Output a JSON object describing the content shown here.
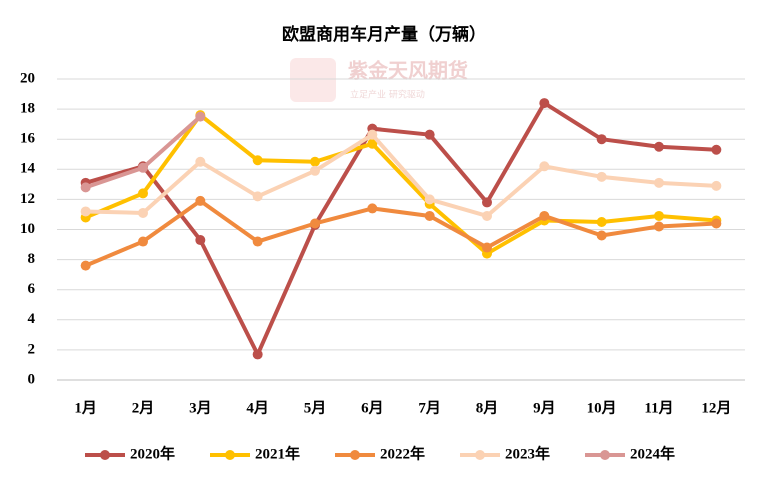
{
  "chart_data": {
    "type": "line",
    "title": "欧盟商用车月产量（万辆）",
    "watermark": "紫金天风期货",
    "watermark_sub": "立足产业 研究驱动",
    "categories": [
      "1月",
      "2月",
      "3月",
      "4月",
      "5月",
      "6月",
      "7月",
      "8月",
      "9月",
      "10月",
      "11月",
      "12月"
    ],
    "series": [
      {
        "name": "2020年",
        "color": "#bc4f4a",
        "values": [
          13.1,
          14.2,
          9.3,
          1.7,
          10.3,
          16.7,
          16.3,
          11.8,
          18.4,
          16.0,
          15.5,
          15.3
        ]
      },
      {
        "name": "2021年",
        "color": "#ffc000",
        "values": [
          10.8,
          12.4,
          17.6,
          14.6,
          14.5,
          15.7,
          11.7,
          8.4,
          10.6,
          10.5,
          10.9,
          10.6
        ]
      },
      {
        "name": "2022年",
        "color": "#f08a3e",
        "values": [
          7.6,
          9.2,
          11.9,
          9.2,
          10.4,
          11.4,
          10.9,
          8.8,
          10.9,
          9.6,
          10.2,
          10.4
        ]
      },
      {
        "name": "2023年",
        "color": "#fbd2b4",
        "values": [
          11.2,
          11.1,
          14.5,
          12.2,
          13.9,
          16.3,
          12.0,
          10.9,
          14.2,
          13.5,
          13.1,
          12.9
        ]
      },
      {
        "name": "2024年",
        "color": "#d99694",
        "values": [
          12.8,
          14.1,
          17.5,
          null,
          null,
          null,
          null,
          null,
          null,
          null,
          null,
          null
        ]
      }
    ],
    "ylim": [
      0,
      20
    ],
    "yticks": [
      0,
      2,
      4,
      6,
      8,
      10,
      12,
      14,
      16,
      18,
      20
    ],
    "grid": true,
    "legend": "bottom"
  }
}
